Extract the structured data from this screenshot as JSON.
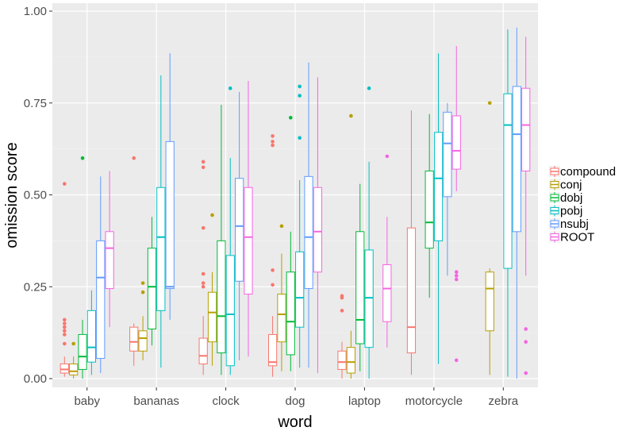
{
  "chart_data": {
    "type": "boxplot",
    "xlabel": "word",
    "ylabel": "omission score",
    "ylim": [
      0,
      1
    ],
    "y_ticks": [
      0.0,
      0.25,
      0.5,
      0.75,
      1.0
    ],
    "y_tick_labels": [
      "0.00",
      "0.25",
      "0.50",
      "0.75",
      "1.00"
    ],
    "categories": [
      "baby",
      "bananas",
      "clock",
      "dog",
      "laptop",
      "motorcycle",
      "zebra"
    ],
    "grid": true,
    "legend_position": "right",
    "series": [
      {
        "name": "compound",
        "color": "#F8766D",
        "boxes": [
          {
            "min": 0.005,
            "q1": 0.015,
            "median": 0.025,
            "q3": 0.04,
            "max": 0.06,
            "outliers": [
              0.53,
              0.16,
              0.15,
              0.14,
              0.13,
              0.12,
              0.095
            ]
          },
          {
            "min": 0.035,
            "q1": 0.075,
            "median": 0.1,
            "q3": 0.14,
            "max": 0.15,
            "outliers": [
              0.6
            ]
          },
          {
            "min": 0.01,
            "q1": 0.04,
            "median": 0.062,
            "q3": 0.11,
            "max": 0.17,
            "outliers": [
              0.59,
              0.575,
              0.41,
              0.285,
              0.26,
              0.25
            ]
          },
          {
            "min": 0.005,
            "q1": 0.035,
            "median": 0.045,
            "q3": 0.12,
            "max": 0.17,
            "outliers": [
              0.66,
              0.645,
              0.635,
              0.295,
              0.255
            ]
          },
          {
            "min": 0.0,
            "q1": 0.025,
            "median": 0.045,
            "q3": 0.075,
            "max": 0.1,
            "outliers": [
              0.225,
              0.22,
              0.185
            ]
          },
          {
            "min": 0.01,
            "q1": 0.07,
            "median": 0.14,
            "q3": 0.41,
            "max": 0.73,
            "outliers": []
          },
          null
        ]
      },
      {
        "name": "conj",
        "color": "#B79F00",
        "boxes": [
          {
            "min": 0.0,
            "q1": 0.01,
            "median": 0.02,
            "q3": 0.04,
            "max": 0.06,
            "outliers": [
              0.095
            ]
          },
          {
            "min": 0.05,
            "q1": 0.075,
            "median": 0.11,
            "q3": 0.13,
            "max": 0.17,
            "outliers": [
              0.26,
              0.235
            ]
          },
          {
            "min": 0.035,
            "q1": 0.1,
            "median": 0.18,
            "q3": 0.235,
            "max": 0.29,
            "outliers": [
              0.445
            ]
          },
          {
            "min": 0.02,
            "q1": 0.1,
            "median": 0.175,
            "q3": 0.23,
            "max": 0.34,
            "outliers": [
              0.415
            ]
          },
          {
            "min": 0.0,
            "q1": 0.015,
            "median": 0.045,
            "q3": 0.085,
            "max": 0.13,
            "outliers": [
              0.715
            ]
          },
          null,
          {
            "min": 0.01,
            "q1": 0.13,
            "median": 0.245,
            "q3": 0.29,
            "max": 0.3,
            "outliers": [
              0.75
            ]
          }
        ]
      },
      {
        "name": "dobj",
        "color": "#00BA38",
        "boxes": [
          {
            "min": 0.0,
            "q1": 0.025,
            "median": 0.06,
            "q3": 0.12,
            "max": 0.16,
            "outliers": [
              0.6
            ]
          },
          {
            "min": 0.09,
            "q1": 0.135,
            "median": 0.25,
            "q3": 0.355,
            "max": 0.44,
            "outliers": []
          },
          {
            "min": 0.01,
            "q1": 0.07,
            "median": 0.17,
            "q3": 0.375,
            "max": 0.745,
            "outliers": []
          },
          {
            "min": 0.02,
            "q1": 0.065,
            "median": 0.155,
            "q3": 0.29,
            "max": 0.4,
            "outliers": [
              0.71
            ]
          },
          {
            "min": 0.02,
            "q1": 0.095,
            "median": 0.16,
            "q3": 0.4,
            "max": 0.53,
            "outliers": []
          },
          {
            "min": 0.22,
            "q1": 0.355,
            "median": 0.425,
            "q3": 0.565,
            "max": 0.72,
            "outliers": []
          },
          null
        ]
      },
      {
        "name": "pobj",
        "color": "#00BFC4",
        "boxes": [
          {
            "min": 0.01,
            "q1": 0.045,
            "median": 0.085,
            "q3": 0.185,
            "max": 0.24,
            "outliers": []
          },
          {
            "min": 0.03,
            "q1": 0.185,
            "median": 0.385,
            "q3": 0.52,
            "max": 0.825,
            "outliers": []
          },
          {
            "min": 0.01,
            "q1": 0.035,
            "median": 0.175,
            "q3": 0.335,
            "max": 0.6,
            "outliers": [
              0.79
            ]
          },
          {
            "min": 0.03,
            "q1": 0.14,
            "median": 0.22,
            "q3": 0.345,
            "max": 0.54,
            "outliers": [
              0.795,
              0.77,
              0.655
            ]
          },
          {
            "min": 0.0,
            "q1": 0.085,
            "median": 0.22,
            "q3": 0.35,
            "max": 0.59,
            "outliers": [
              0.79
            ]
          },
          {
            "min": 0.04,
            "q1": 0.375,
            "median": 0.545,
            "q3": 0.67,
            "max": 0.885,
            "outliers": []
          },
          {
            "min": 0.005,
            "q1": 0.3,
            "median": 0.69,
            "q3": 0.775,
            "max": 0.95,
            "outliers": []
          }
        ]
      },
      {
        "name": "nsubj",
        "color": "#619CFF",
        "boxes": [
          {
            "min": 0.015,
            "q1": 0.055,
            "median": 0.275,
            "q3": 0.375,
            "max": 0.55,
            "outliers": []
          },
          {
            "min": 0.16,
            "q1": 0.245,
            "median": 0.25,
            "q3": 0.645,
            "max": 0.885,
            "outliers": []
          },
          {
            "min": 0.05,
            "q1": 0.265,
            "median": 0.415,
            "q3": 0.545,
            "max": 0.78,
            "outliers": []
          },
          {
            "min": 0.03,
            "q1": 0.245,
            "median": 0.385,
            "q3": 0.55,
            "max": 0.86,
            "outliers": []
          },
          null,
          {
            "min": 0.28,
            "q1": 0.495,
            "median": 0.64,
            "q3": 0.725,
            "max": 0.75,
            "outliers": []
          },
          {
            "min": 0.0,
            "q1": 0.4,
            "median": 0.665,
            "q3": 0.795,
            "max": 0.955,
            "outliers": []
          }
        ]
      },
      {
        "name": "ROOT",
        "color": "#F564E3",
        "boxes": [
          {
            "min": 0.14,
            "q1": 0.245,
            "median": 0.355,
            "q3": 0.4,
            "max": 0.565,
            "outliers": []
          },
          null,
          {
            "min": 0.06,
            "q1": 0.23,
            "median": 0.385,
            "q3": 0.52,
            "max": 0.81,
            "outliers": []
          },
          {
            "min": 0.015,
            "q1": 0.29,
            "median": 0.4,
            "q3": 0.52,
            "max": 0.82,
            "outliers": []
          },
          {
            "min": 0.085,
            "q1": 0.155,
            "median": 0.245,
            "q3": 0.31,
            "max": 0.44,
            "outliers": [
              0.605
            ]
          },
          {
            "min": 0.51,
            "q1": 0.57,
            "median": 0.62,
            "q3": 0.715,
            "max": 0.905,
            "outliers": [
              0.29,
              0.28,
              0.27,
              0.05
            ]
          },
          {
            "min": 0.28,
            "q1": 0.565,
            "median": 0.69,
            "q3": 0.79,
            "max": 0.93,
            "outliers": [
              0.135,
              0.1,
              0.015
            ]
          }
        ]
      }
    ]
  }
}
